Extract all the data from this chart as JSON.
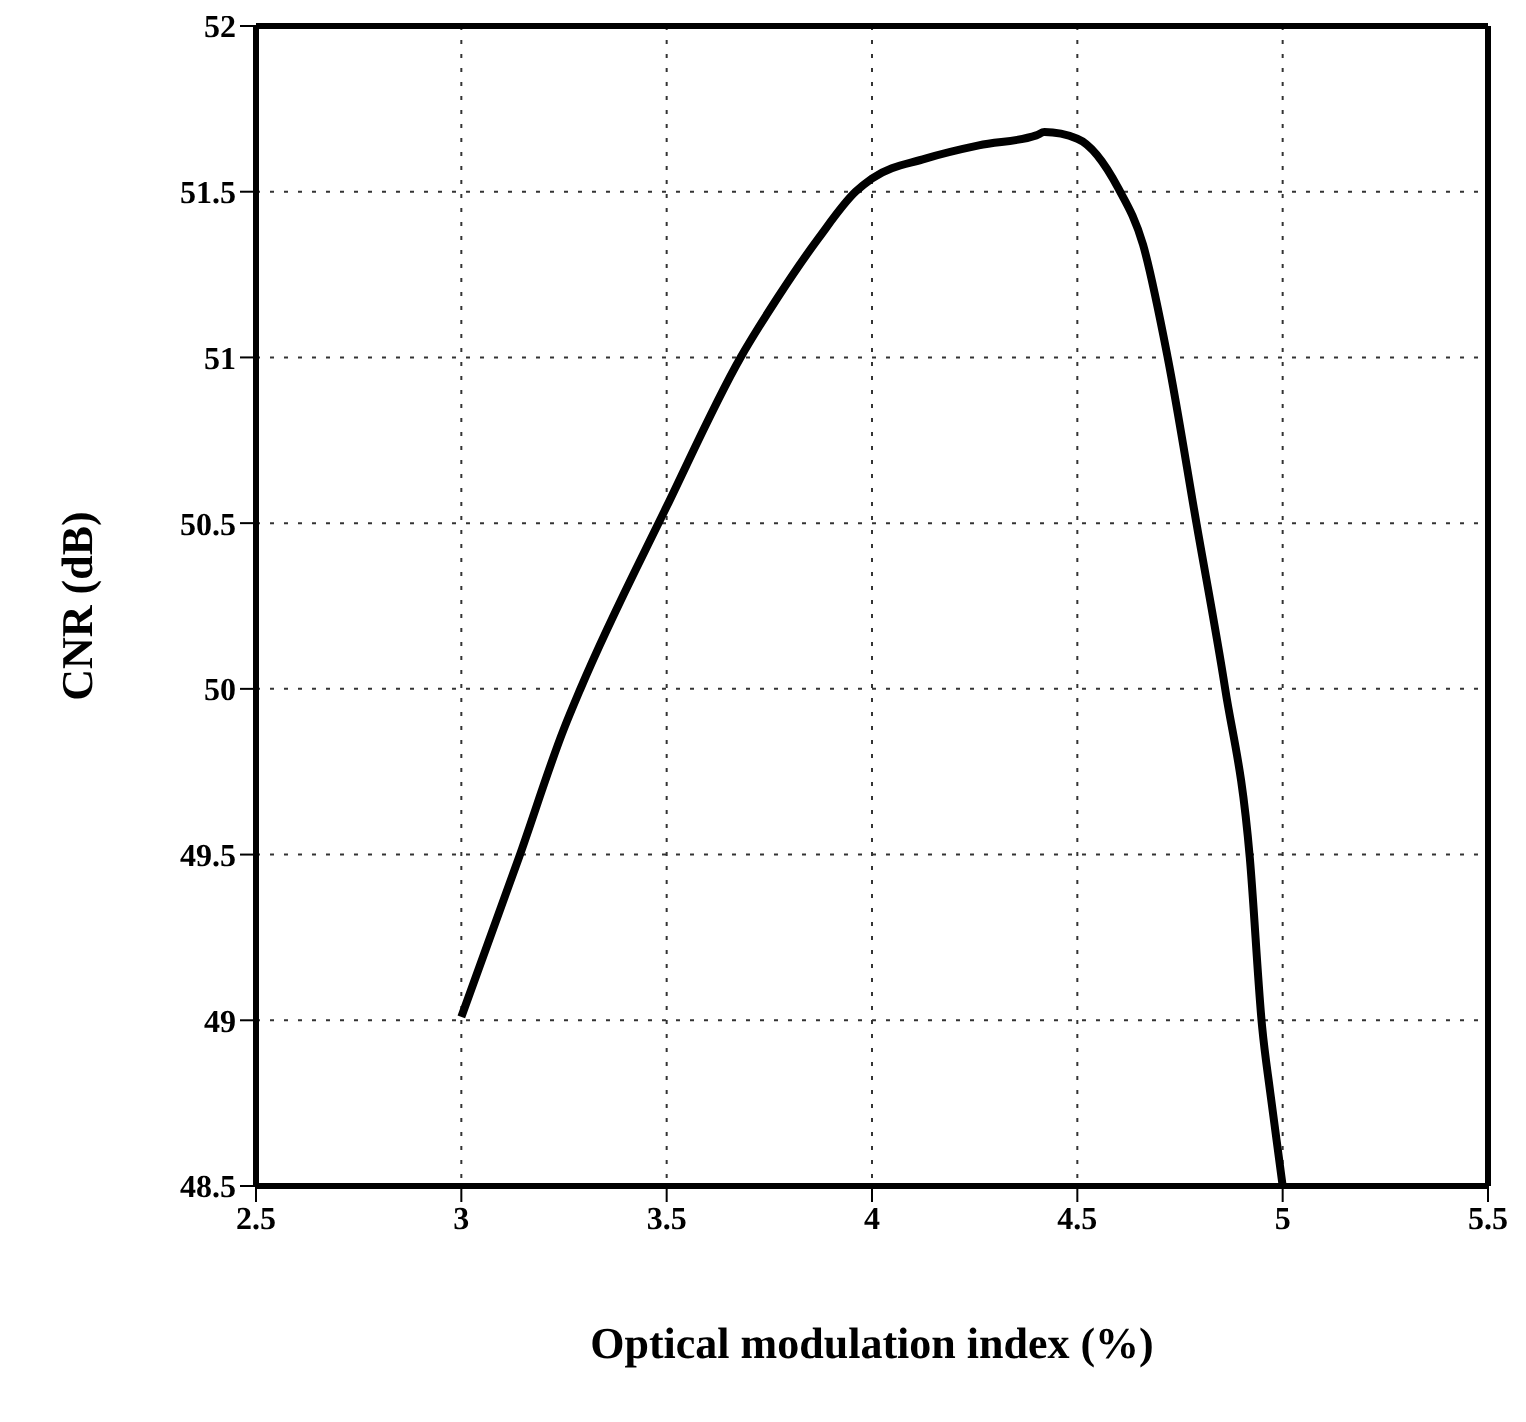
{
  "chart_data": {
    "type": "line",
    "xlabel": "Optical modulation index (%)",
    "ylabel": "CNR (dB)",
    "x": [
      3.0,
      3.14,
      3.25,
      3.29,
      3.5,
      3.68,
      3.77,
      3.87,
      3.96,
      4.0,
      4.13,
      4.26,
      4.4,
      4.42,
      4.5,
      4.6,
      4.66,
      4.72,
      4.79,
      4.86,
      4.92,
      4.95,
      4.97,
      5.0
    ],
    "series": [
      {
        "color": "#000000",
        "values": [
          49.01,
          49.49,
          49.88,
          50.0,
          50.55,
          51.0,
          51.18,
          51.36,
          51.5,
          51.54,
          51.6,
          51.64,
          51.67,
          51.68,
          51.66,
          51.51,
          51.34,
          51.0,
          50.5,
          50.0,
          49.49,
          48.98,
          48.78,
          48.5
        ]
      }
    ],
    "xlim": [
      2.5,
      5.5
    ],
    "xticks": [
      2.5,
      3,
      3.5,
      4,
      4.5,
      5,
      5.5
    ],
    "ylim": [
      48.5,
      52
    ],
    "yticks": [
      48.5,
      49,
      49.5,
      50,
      50.5,
      51,
      51.5,
      52
    ],
    "grid": true,
    "marker": "none",
    "line_style": "solid"
  }
}
